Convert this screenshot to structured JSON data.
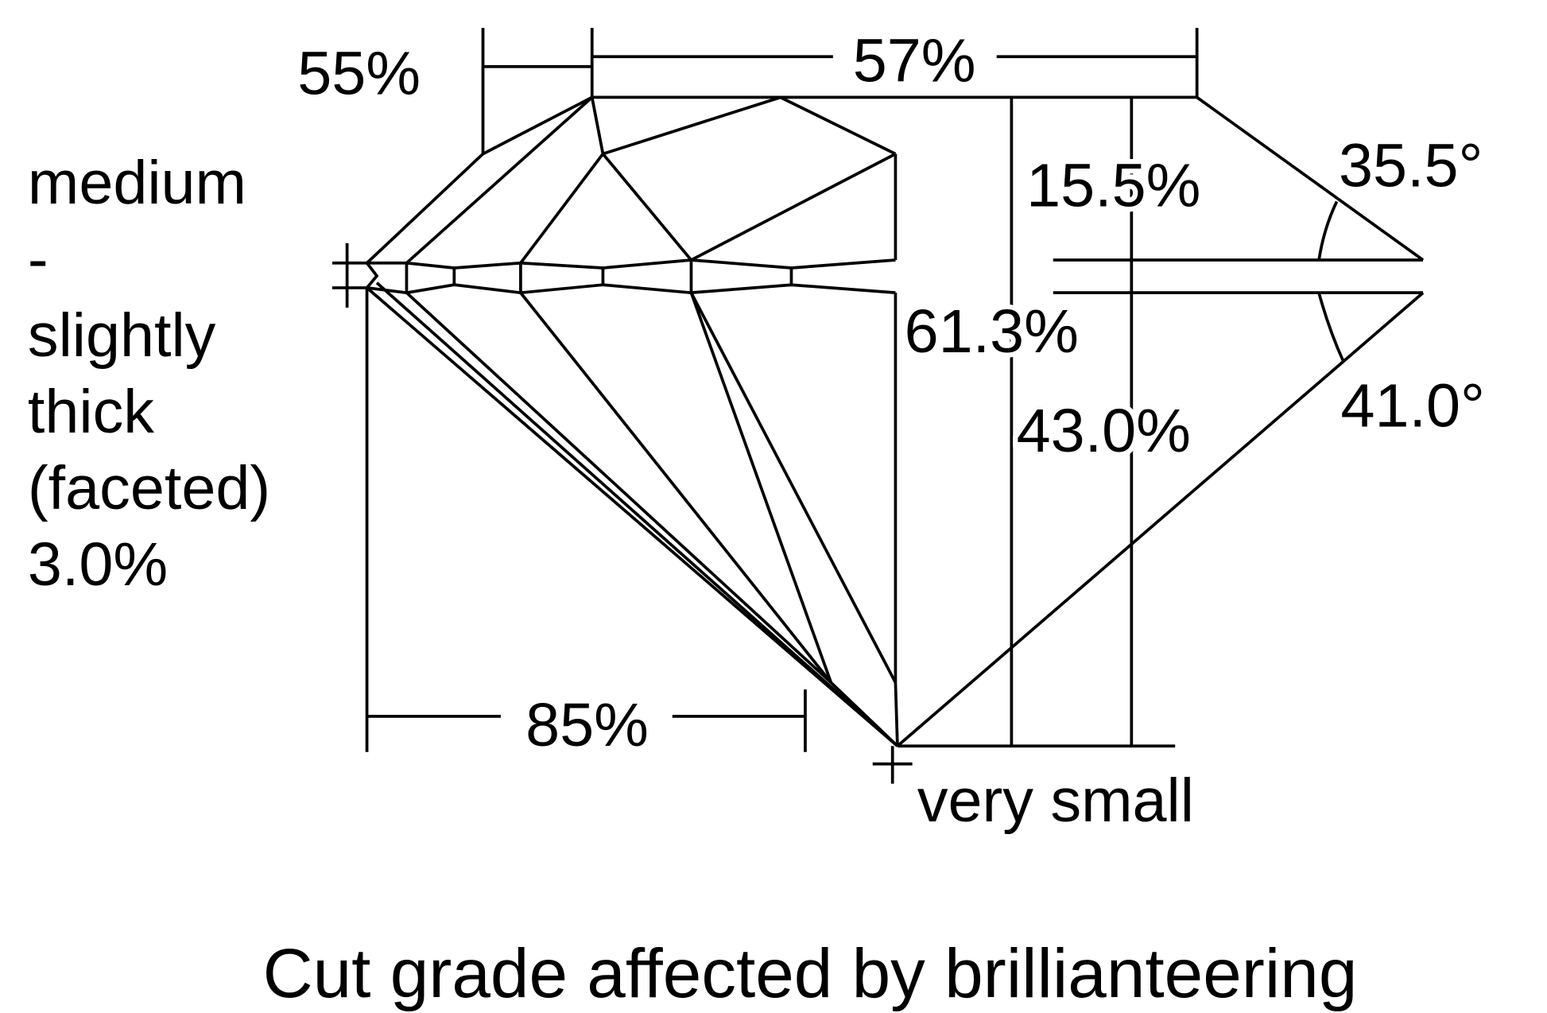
{
  "star_length": "55%",
  "table": "57%",
  "crown_height": "15.5%",
  "crown_angle": "35.5°",
  "total_depth": "61.3%",
  "pavilion_depth": "43.0%",
  "pavilion_angle": "41.0°",
  "lower_half_length": "85%",
  "culet": "very small",
  "girdle": [
    "medium",
    "-",
    "slightly",
    "thick",
    "(faceted)",
    "3.0%"
  ],
  "caption": "Cut grade affected by brillianteering"
}
